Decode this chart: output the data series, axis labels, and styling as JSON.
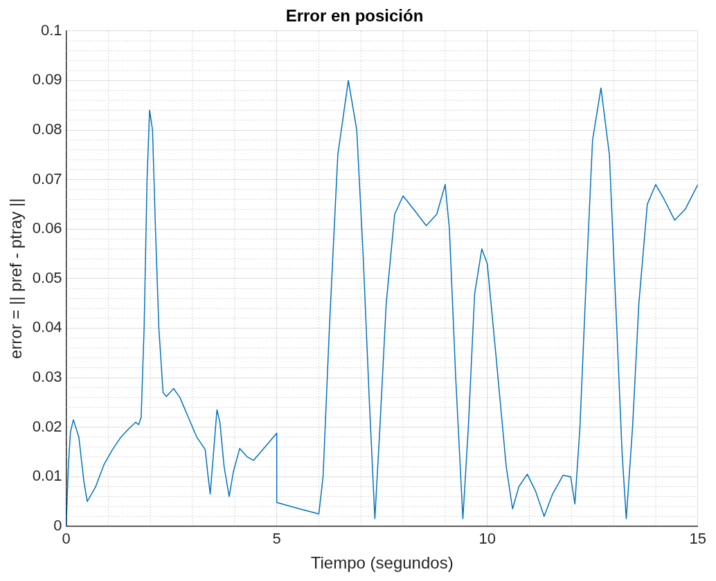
{
  "chart_data": {
    "type": "line",
    "title": "Error en posición",
    "xlabel": "Tiempo (segundos)",
    "ylabel": "error = || pref - ptray ||",
    "xlim": [
      0,
      15
    ],
    "xticks": [
      0,
      5,
      10,
      15
    ],
    "ylim": [
      0,
      0.1
    ],
    "yticks": [
      0,
      0.01,
      0.02,
      0.03,
      0.04,
      0.05,
      0.06,
      0.07,
      0.08,
      0.09,
      0.1
    ],
    "grid": true,
    "legend": false,
    "series": [
      {
        "color": "#0072bd",
        "x": [
          0,
          0.05,
          0.1,
          0.17,
          0.3,
          0.42,
          0.5,
          0.7,
          0.9,
          1.1,
          1.3,
          1.5,
          1.65,
          1.72,
          1.78,
          1.85,
          1.92,
          1.98,
          2.05,
          2.12,
          2.2,
          2.3,
          2.38,
          2.55,
          2.7,
          2.9,
          3.1,
          3.3,
          3.37,
          3.42,
          3.5,
          3.58,
          3.65,
          3.75,
          3.87,
          3.97,
          4.12,
          4.3,
          4.45,
          4.7,
          5.0,
          5.0,
          5.5,
          6.0,
          6.1,
          6.25,
          6.45,
          6.7,
          6.9,
          7.05,
          7.2,
          7.33,
          7.45,
          7.6,
          7.8,
          8.0,
          8.25,
          8.55,
          8.8,
          9.0,
          9.1,
          9.25,
          9.42,
          9.55,
          9.7,
          9.87,
          10.0,
          10.2,
          10.45,
          10.6,
          10.75,
          10.95,
          11.15,
          11.35,
          11.55,
          11.8,
          11.98,
          12.08,
          12.2,
          12.35,
          12.5,
          12.7,
          12.9,
          13.05,
          13.2,
          13.3,
          13.45,
          13.6,
          13.8,
          14.0,
          14.2,
          14.45,
          14.7,
          15.0
        ],
        "values": [
          0,
          0.012,
          0.019,
          0.0215,
          0.018,
          0.009,
          0.005,
          0.008,
          0.0125,
          0.0155,
          0.018,
          0.0198,
          0.021,
          0.0205,
          0.022,
          0.04,
          0.07,
          0.084,
          0.08,
          0.06,
          0.04,
          0.027,
          0.0262,
          0.0278,
          0.026,
          0.022,
          0.018,
          0.0155,
          0.01,
          0.0065,
          0.015,
          0.0235,
          0.021,
          0.012,
          0.006,
          0.011,
          0.0157,
          0.014,
          0.0133,
          0.0158,
          0.0188,
          0.0048,
          0.0036,
          0.0025,
          0.01,
          0.04,
          0.075,
          0.09,
          0.08,
          0.055,
          0.025,
          0.0015,
          0.02,
          0.045,
          0.063,
          0.0667,
          0.064,
          0.0607,
          0.063,
          0.069,
          0.06,
          0.03,
          0.0015,
          0.02,
          0.047,
          0.056,
          0.053,
          0.035,
          0.012,
          0.0035,
          0.008,
          0.0105,
          0.007,
          0.002,
          0.0065,
          0.0103,
          0.01,
          0.0045,
          0.02,
          0.05,
          0.078,
          0.0885,
          0.075,
          0.045,
          0.015,
          0.0015,
          0.02,
          0.045,
          0.065,
          0.069,
          0.066,
          0.0618,
          0.064,
          0.069
        ]
      }
    ]
  }
}
